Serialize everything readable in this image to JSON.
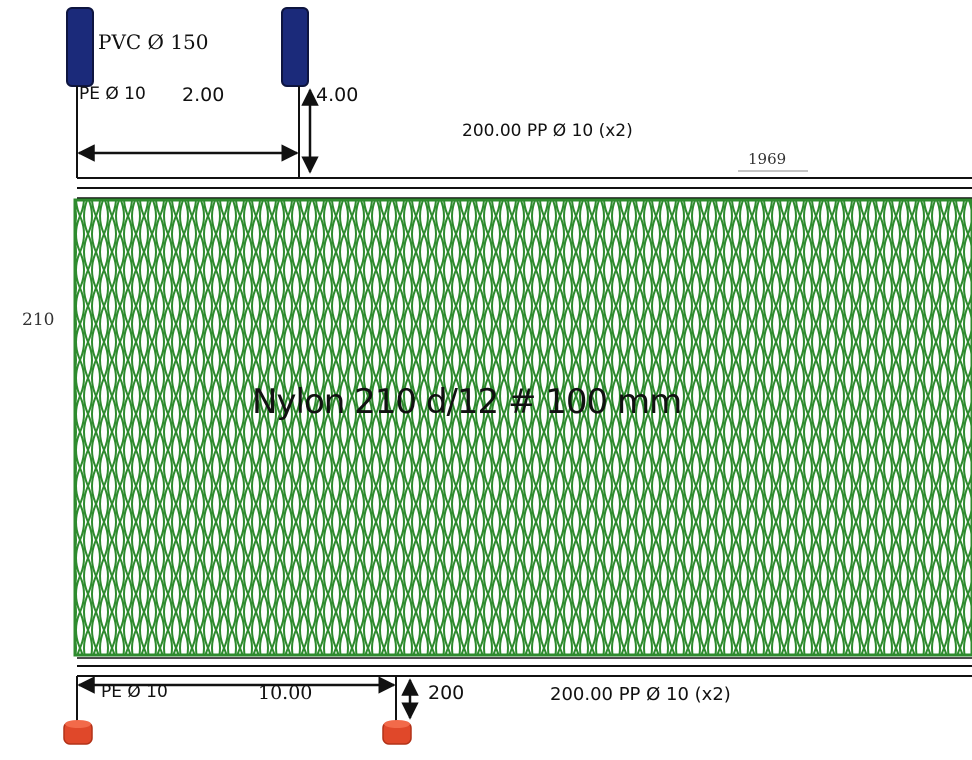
{
  "labels": {
    "float": "PVC Ø 150",
    "float_line": "PE Ø 10",
    "float_spacing": "2.00",
    "float_drop": "4.00",
    "headrope": "200.00 PP Ø 10 (x2)",
    "net_length": "1969",
    "net_depth": "210",
    "netting": "Nylon 210 d/12 # 100 mm",
    "sinker_line": "PE Ø 10",
    "sinker_spacing": "10.00",
    "sinker_drop": "200",
    "footrope": "200.00 PP Ø 10 (x2)"
  },
  "colors": {
    "float": "#1b2a7a",
    "netting": "#2e8b2e",
    "sinker": "#e0482a",
    "line": "#111111"
  },
  "icons": {
    "float": "float-icon",
    "sinker": "sinker-icon"
  }
}
